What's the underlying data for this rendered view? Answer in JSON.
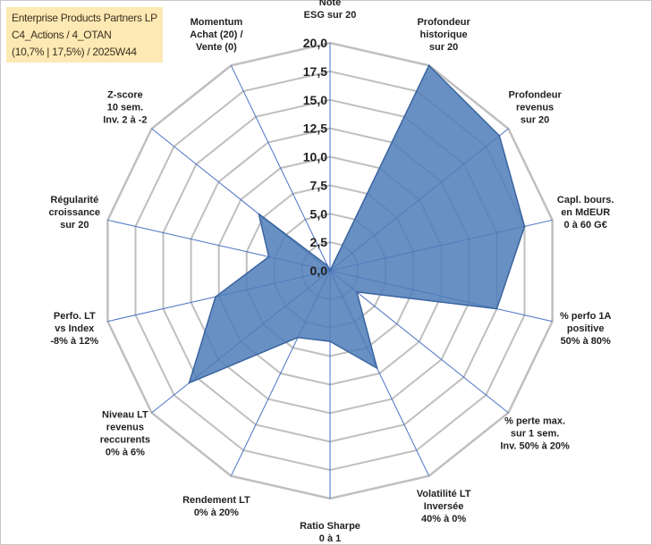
{
  "title_box": {
    "line1": "Enterprise Products Partners LP",
    "line2": "C4_Actions / 4_OTAN",
    "line3": "(10,7% | 17,5%) / 2025W44"
  },
  "colors": {
    "fill": "#4f7db8",
    "stroke": "#3a64a0",
    "grid": "#bfbfbf",
    "spoke": "#4a72c4",
    "title_bg": "#fde9b3"
  },
  "chart_data": {
    "type": "radar",
    "title": "Enterprise Products Partners LP",
    "rmin": 0,
    "rmax": 20,
    "tick_labels": [
      "0,0",
      "2,5",
      "5,0",
      "7,5",
      "10,0",
      "12,5",
      "15,0",
      "17,5",
      "20,0"
    ],
    "axes": [
      [
        "Note",
        "ESG sur 20"
      ],
      [
        "Profondeur",
        "historique",
        "sur 20"
      ],
      [
        "Profondeur",
        "revenus",
        "sur 20"
      ],
      [
        "Capl. bours.",
        "en MdEUR",
        "0 à 60 G€"
      ],
      [
        "% perfo 1A",
        "positive",
        "50% à 80%"
      ],
      [
        "% perte max.",
        "sur 1 sem.",
        "Inv. 50% à 20%"
      ],
      [
        "Volatilité LT",
        "Inversée",
        "40% à 0%"
      ],
      [
        "Ratio Sharpe",
        "0 à 1"
      ],
      [
        "Rendement LT",
        "0% à 20%"
      ],
      [
        "Niveau LT",
        "revenus",
        "reccurents",
        "0% à 6%"
      ],
      [
        "Perfo. LT",
        "vs Index",
        "-8% à 12%"
      ],
      [
        "Régularité",
        "croissance",
        "sur 20"
      ],
      [
        "Z-score",
        "10 sem.",
        "Inv. 2 à -2"
      ],
      [
        "Momentum",
        "Achat (20) /",
        "Vente (0)"
      ]
    ],
    "values": [
      0,
      20,
      19,
      17.5,
      15,
      3,
      9.5,
      6.2,
      6.5,
      15.8,
      10.3,
      5.5,
      8,
      0.5
    ]
  }
}
